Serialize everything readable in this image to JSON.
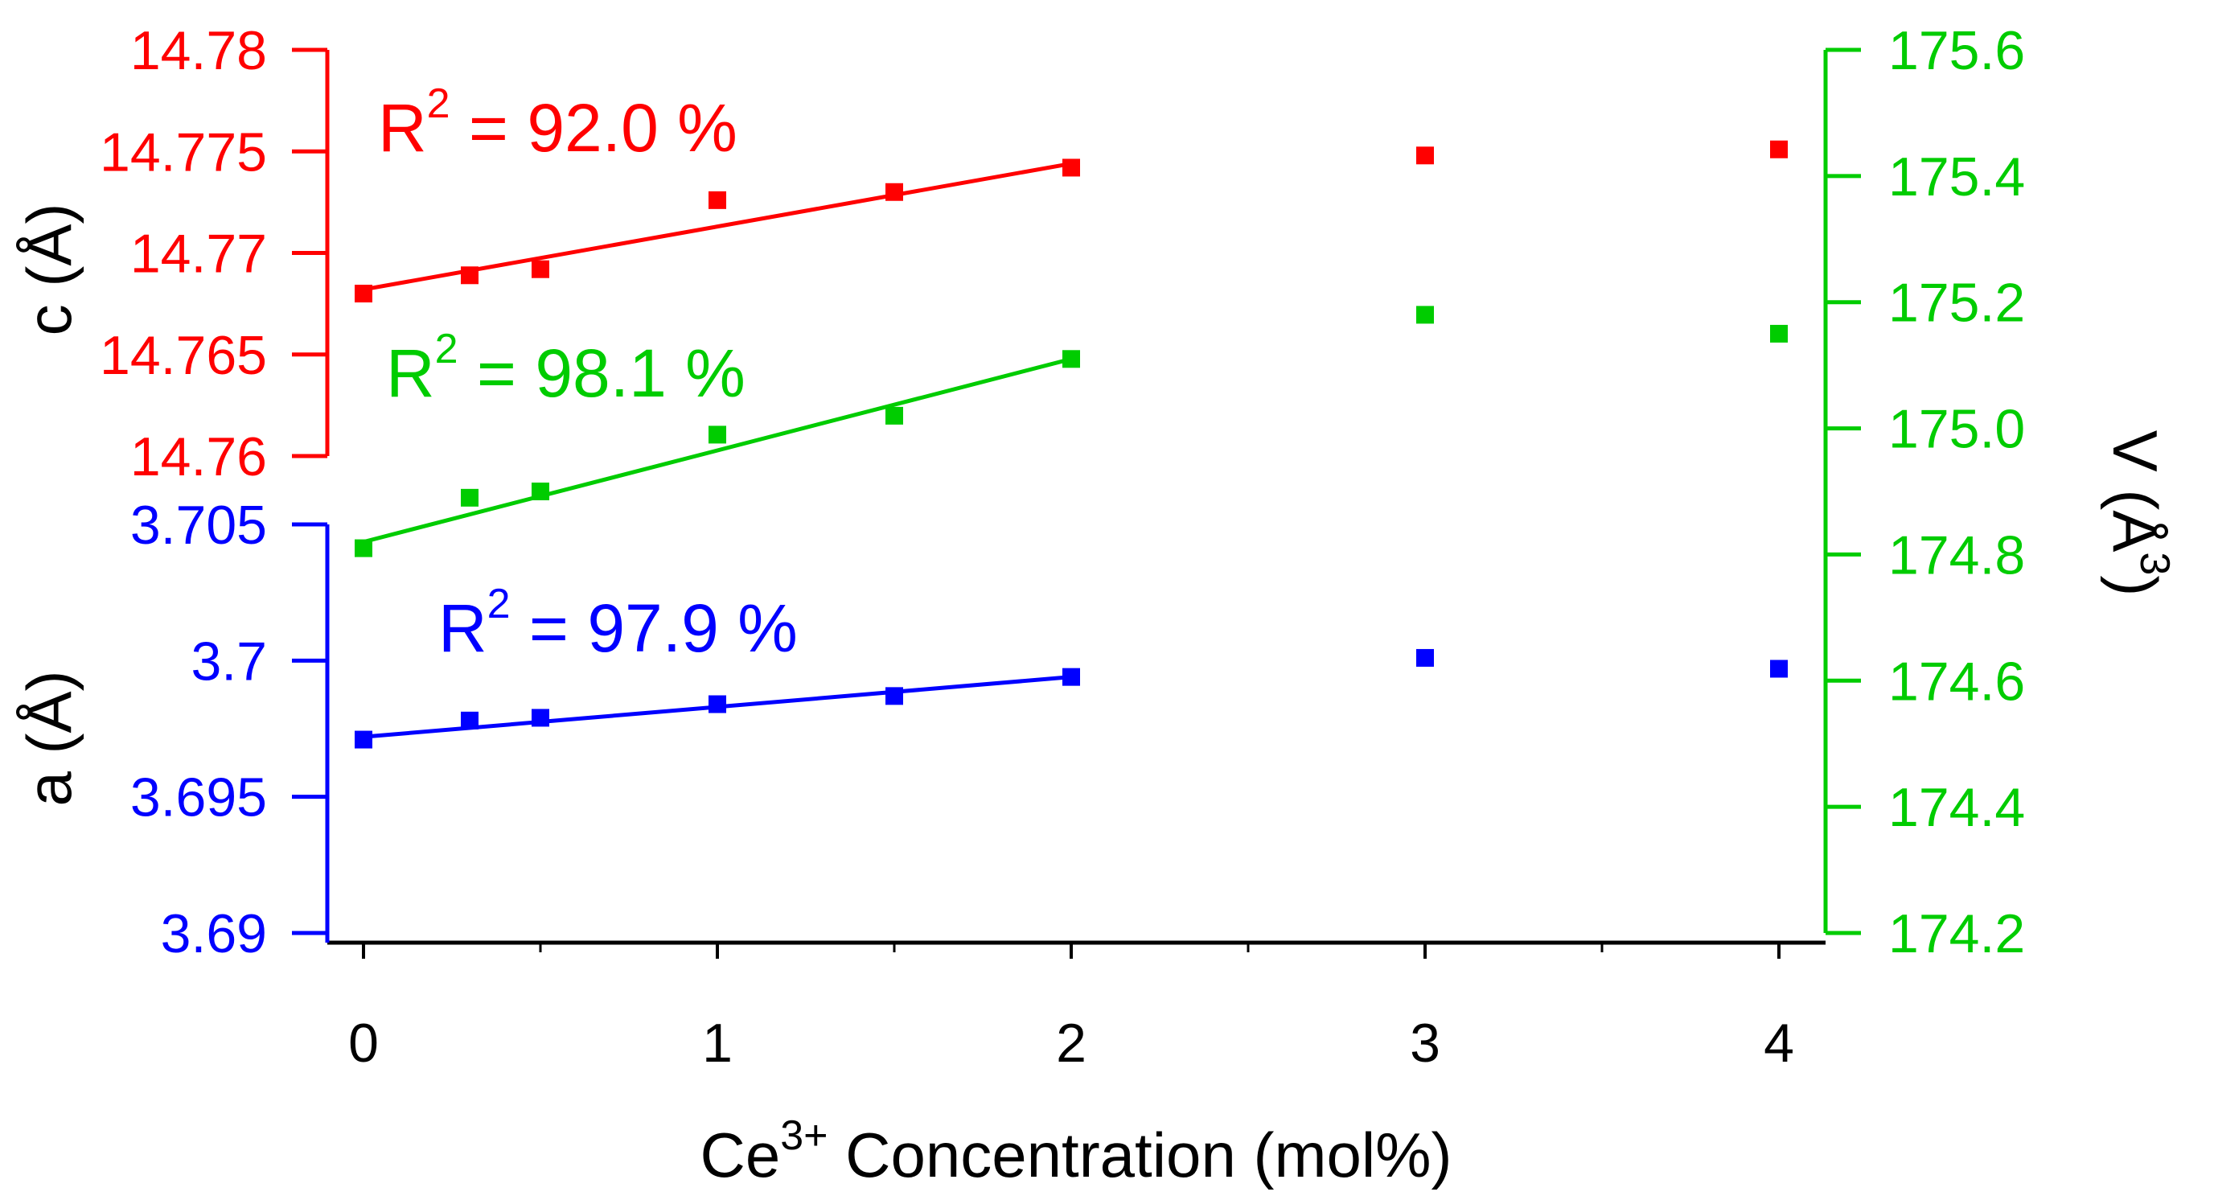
{
  "chart_data": {
    "type": "scatter",
    "title": "",
    "xlabel": {
      "prefix": "Ce",
      "superscript": "3+",
      "suffix": " Concentration (mol%)"
    },
    "x_ticks": [
      "0",
      "1",
      "2",
      "3",
      "4"
    ],
    "x_range": [
      -0.05,
      4.15
    ],
    "colors": {
      "c": "#ff0000",
      "V": "#00cc00",
      "a": "#0000ff",
      "x_axis": "#000000"
    },
    "axes": {
      "c": {
        "label": "c (Å)",
        "side": "left-upper",
        "range": [
          14.76,
          14.78
        ],
        "ticks": [
          "14.78",
          "14.775",
          "14.77",
          "14.765",
          "14.76"
        ]
      },
      "a": {
        "label": "a (Å)",
        "side": "left-lower",
        "range": [
          3.69,
          3.705
        ],
        "ticks": [
          "3.705",
          "3.7",
          "3.695",
          "3.69"
        ]
      },
      "V": {
        "label_base": "V (Å",
        "label_superscript": "3",
        "label_end": ")",
        "side": "right",
        "range": [
          174.2,
          175.6
        ],
        "ticks": [
          "175.6",
          "175.4",
          "175.2",
          "175.0",
          "174.8",
          "174.6",
          "174.4",
          "174.2"
        ]
      }
    },
    "series": [
      {
        "name": "c",
        "axis": "c",
        "x": [
          0,
          0.3,
          0.5,
          1,
          1.5,
          2,
          3,
          4
        ],
        "y": [
          14.768,
          14.7689,
          14.7692,
          14.7726,
          14.773,
          14.7742,
          14.7748,
          14.7751
        ],
        "fit": {
          "x0": 0,
          "y0": 14.7682,
          "x1": 2,
          "y1": 14.7744
        },
        "r2_label": {
          "base": "R",
          "sup": "2",
          "rest": " = 92.0 %"
        }
      },
      {
        "name": "V",
        "axis": "V",
        "x": [
          0,
          0.3,
          0.5,
          1,
          1.5,
          2,
          3,
          4
        ],
        "y": [
          174.81,
          174.89,
          174.9,
          174.99,
          175.02,
          175.11,
          175.18,
          175.15
        ],
        "fit": {
          "x0": 0,
          "y0": 174.82,
          "x1": 2,
          "y1": 175.11
        },
        "r2_label": {
          "base": "R",
          "sup": "2",
          "rest": " = 98.1 %"
        }
      },
      {
        "name": "a",
        "axis": "a",
        "x": [
          0,
          0.3,
          0.5,
          1,
          1.5,
          2,
          3,
          4
        ],
        "y": [
          3.6971,
          3.6978,
          3.6979,
          3.6984,
          3.6987,
          3.6994,
          3.7001,
          3.6997
        ],
        "fit": {
          "x0": 0,
          "y0": 3.6972,
          "x1": 2,
          "y1": 3.6994
        },
        "r2_label": {
          "base": "R",
          "sup": "2",
          "rest": " = 97.9 %"
        }
      }
    ]
  }
}
